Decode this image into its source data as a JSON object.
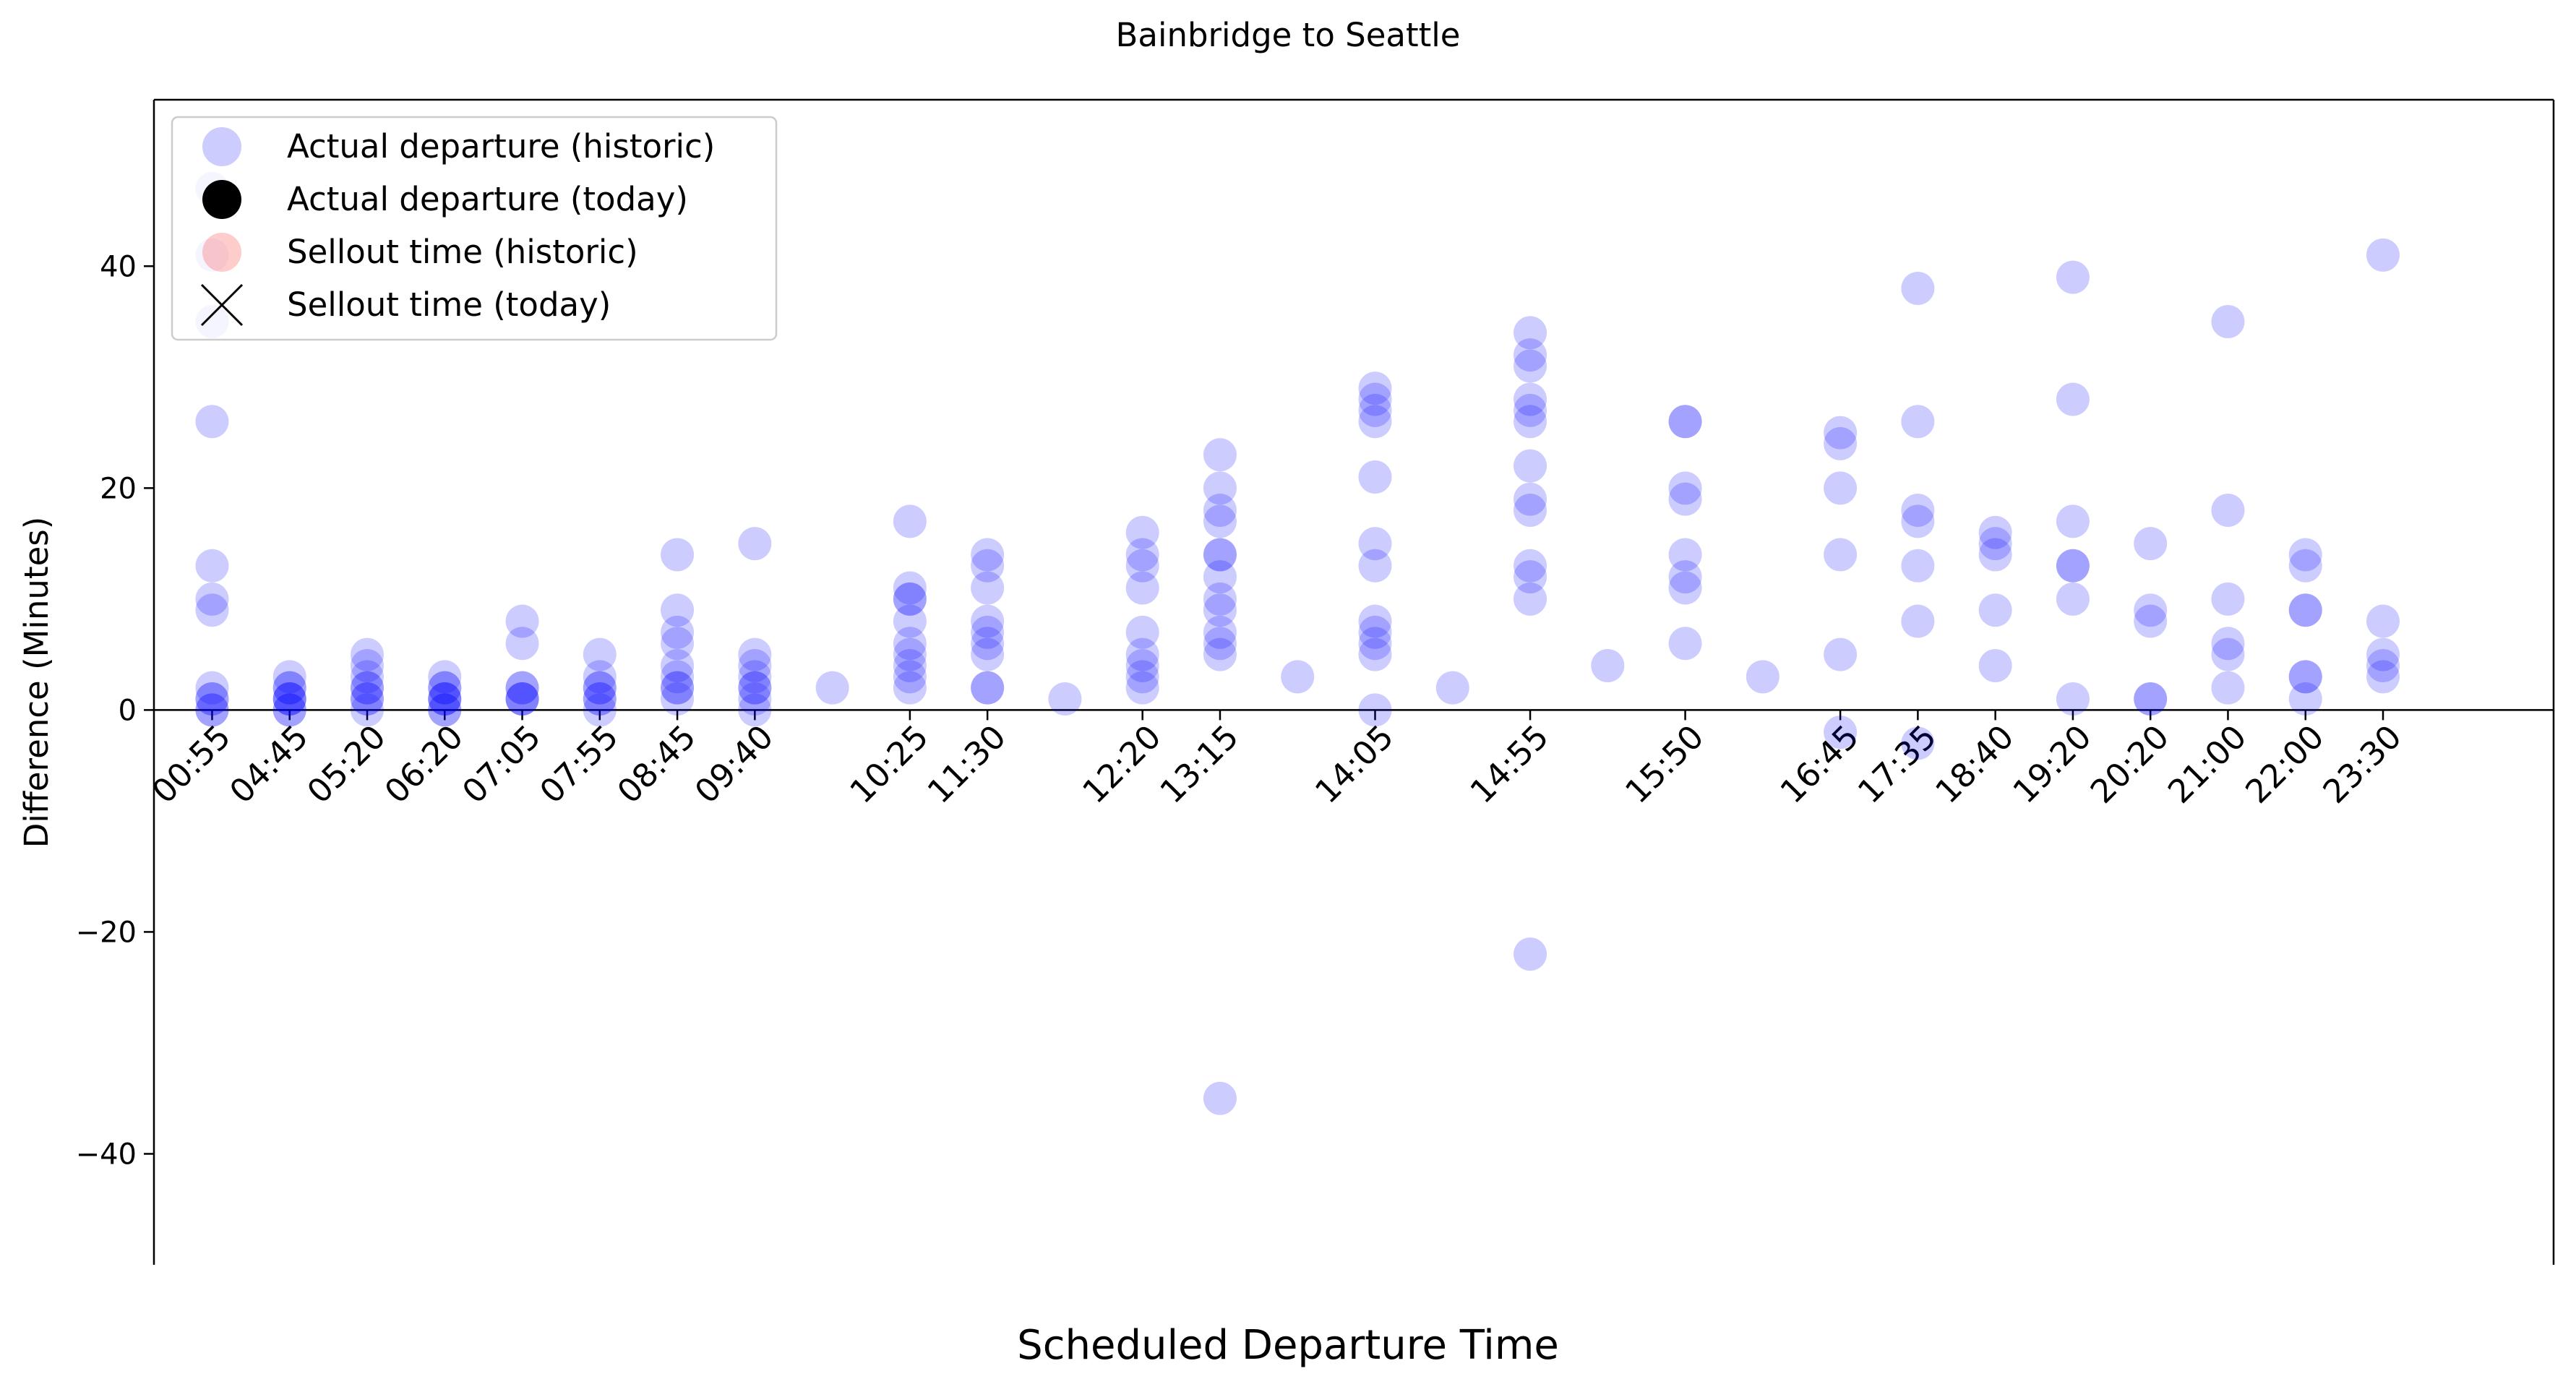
{
  "chart_data": {
    "type": "scatter",
    "title": "Bainbridge to Seattle",
    "xlabel": "Scheduled Departure Time",
    "ylabel": "Difference (Minutes)",
    "ylim": [
      -50,
      55
    ],
    "xlim": [
      -0.75,
      30.2
    ],
    "yticks": [
      -40,
      -20,
      0,
      20,
      40
    ],
    "ytick_labels": [
      "−40",
      "−20",
      "0",
      "20",
      "40"
    ],
    "x_categories": [
      "00:55",
      "04:45",
      "05:20",
      "06:20",
      "07:05",
      "07:55",
      "08:45",
      "09:40",
      "10:25",
      "11:30",
      "12:20",
      "13:15",
      "14:05",
      "14:55",
      "15:50",
      "16:45",
      "17:35",
      "18:40",
      "19:20",
      "20:20",
      "21:00",
      "22:00",
      "23:30"
    ],
    "x_tick_positions": [
      0,
      1,
      2,
      3,
      4,
      5,
      6,
      7,
      9,
      10,
      12,
      13,
      15,
      17,
      19,
      21,
      22,
      23,
      24,
      25,
      26,
      27,
      28
    ],
    "zero_line": true,
    "grid": false,
    "legend_placement": "upper-left",
    "legend": [
      {
        "label": "Actual departure (historic)",
        "marker": "circle",
        "color": "#0000ff",
        "opacity": 0.2
      },
      {
        "label": "Actual departure (today)",
        "marker": "circle",
        "color": "#000000",
        "opacity": 1
      },
      {
        "label": "Sellout time (historic)",
        "marker": "circle",
        "color": "#ff0000",
        "opacity": 0.2
      },
      {
        "label": "Sellout time (today)",
        "marker": "x",
        "color": "#000000",
        "opacity": 1
      }
    ],
    "series": [
      {
        "name": "Actual departure (historic)",
        "color": "#0000ff",
        "opacity": 0.2,
        "points": [
          [
            0,
            47
          ],
          [
            0,
            41
          ],
          [
            0,
            35
          ],
          [
            0,
            26
          ],
          [
            0,
            13
          ],
          [
            0,
            10
          ],
          [
            0,
            9
          ],
          [
            0,
            2
          ],
          [
            0,
            1
          ],
          [
            0,
            0
          ],
          [
            0,
            1
          ],
          [
            0,
            0
          ],
          [
            1,
            3
          ],
          [
            1,
            2
          ],
          [
            1,
            1
          ],
          [
            1,
            1
          ],
          [
            1,
            0
          ],
          [
            1,
            2
          ],
          [
            1,
            1
          ],
          [
            1,
            0
          ],
          [
            2,
            5
          ],
          [
            2,
            4
          ],
          [
            2,
            3
          ],
          [
            2,
            2
          ],
          [
            2,
            2
          ],
          [
            2,
            1
          ],
          [
            2,
            1
          ],
          [
            2,
            0
          ],
          [
            3,
            3
          ],
          [
            3,
            2
          ],
          [
            3,
            1
          ],
          [
            3,
            1
          ],
          [
            3,
            0
          ],
          [
            3,
            2
          ],
          [
            3,
            1
          ],
          [
            3,
            0
          ],
          [
            4,
            8
          ],
          [
            4,
            6
          ],
          [
            4,
            2
          ],
          [
            4,
            1
          ],
          [
            4,
            2
          ],
          [
            4,
            1
          ],
          [
            4,
            1
          ],
          [
            5,
            5
          ],
          [
            5,
            3
          ],
          [
            5,
            2
          ],
          [
            5,
            1
          ],
          [
            5,
            0
          ],
          [
            5,
            2
          ],
          [
            5,
            1
          ],
          [
            6,
            14
          ],
          [
            6,
            9
          ],
          [
            6,
            7
          ],
          [
            6,
            6
          ],
          [
            6,
            4
          ],
          [
            6,
            3
          ],
          [
            6,
            2
          ],
          [
            6,
            1
          ],
          [
            6,
            2
          ],
          [
            7,
            15
          ],
          [
            7,
            5
          ],
          [
            7,
            4
          ],
          [
            7,
            3
          ],
          [
            7,
            2
          ],
          [
            7,
            1
          ],
          [
            7,
            0
          ],
          [
            7,
            2
          ],
          [
            8,
            2
          ],
          [
            9,
            17
          ],
          [
            9,
            11
          ],
          [
            9,
            10
          ],
          [
            9,
            8
          ],
          [
            9,
            6
          ],
          [
            9,
            5
          ],
          [
            9,
            4
          ],
          [
            9,
            3
          ],
          [
            9,
            2
          ],
          [
            9,
            10
          ],
          [
            10,
            14
          ],
          [
            10,
            13
          ],
          [
            10,
            11
          ],
          [
            10,
            8
          ],
          [
            10,
            7
          ],
          [
            10,
            6
          ],
          [
            10,
            5
          ],
          [
            10,
            2
          ],
          [
            10,
            2
          ],
          [
            11,
            1
          ],
          [
            12,
            16
          ],
          [
            12,
            14
          ],
          [
            12,
            13
          ],
          [
            12,
            11
          ],
          [
            12,
            7
          ],
          [
            12,
            5
          ],
          [
            12,
            4
          ],
          [
            12,
            3
          ],
          [
            12,
            2
          ],
          [
            13,
            23
          ],
          [
            13,
            20
          ],
          [
            13,
            18
          ],
          [
            13,
            17
          ],
          [
            13,
            14
          ],
          [
            13,
            14
          ],
          [
            13,
            12
          ],
          [
            13,
            10
          ],
          [
            13,
            9
          ],
          [
            13,
            7
          ],
          [
            13,
            6
          ],
          [
            13,
            5
          ],
          [
            13,
            -35
          ],
          [
            14,
            3
          ],
          [
            15,
            29
          ],
          [
            15,
            28
          ],
          [
            15,
            27
          ],
          [
            15,
            26
          ],
          [
            15,
            21
          ],
          [
            15,
            15
          ],
          [
            15,
            13
          ],
          [
            15,
            8
          ],
          [
            15,
            7
          ],
          [
            15,
            6
          ],
          [
            15,
            5
          ],
          [
            15,
            0
          ],
          [
            16,
            2
          ],
          [
            17,
            34
          ],
          [
            17,
            32
          ],
          [
            17,
            31
          ],
          [
            17,
            28
          ],
          [
            17,
            27
          ],
          [
            17,
            26
          ],
          [
            17,
            22
          ],
          [
            17,
            19
          ],
          [
            17,
            18
          ],
          [
            17,
            13
          ],
          [
            17,
            12
          ],
          [
            17,
            10
          ],
          [
            17,
            -22
          ],
          [
            18,
            4
          ],
          [
            19,
            26
          ],
          [
            19,
            26
          ],
          [
            19,
            20
          ],
          [
            19,
            19
          ],
          [
            19,
            14
          ],
          [
            19,
            12
          ],
          [
            19,
            11
          ],
          [
            19,
            6
          ],
          [
            20,
            3
          ],
          [
            21,
            25
          ],
          [
            21,
            24
          ],
          [
            21,
            20
          ],
          [
            21,
            14
          ],
          [
            21,
            5
          ],
          [
            21,
            -2
          ],
          [
            22,
            38
          ],
          [
            22,
            26
          ],
          [
            22,
            18
          ],
          [
            22,
            17
          ],
          [
            22,
            13
          ],
          [
            22,
            8
          ],
          [
            22,
            -3
          ],
          [
            23,
            16
          ],
          [
            23,
            15
          ],
          [
            23,
            14
          ],
          [
            23,
            9
          ],
          [
            23,
            4
          ],
          [
            24,
            39
          ],
          [
            24,
            28
          ],
          [
            24,
            17
          ],
          [
            24,
            13
          ],
          [
            24,
            13
          ],
          [
            24,
            10
          ],
          [
            24,
            1
          ],
          [
            25,
            15
          ],
          [
            25,
            9
          ],
          [
            25,
            8
          ],
          [
            25,
            1
          ],
          [
            25,
            1
          ],
          [
            26,
            35
          ],
          [
            26,
            18
          ],
          [
            26,
            10
          ],
          [
            26,
            6
          ],
          [
            26,
            5
          ],
          [
            26,
            2
          ],
          [
            27,
            14
          ],
          [
            27,
            13
          ],
          [
            27,
            9
          ],
          [
            27,
            9
          ],
          [
            27,
            3
          ],
          [
            27,
            3
          ],
          [
            27,
            1
          ],
          [
            28,
            41
          ],
          [
            28,
            8
          ],
          [
            28,
            5
          ],
          [
            28,
            4
          ],
          [
            28,
            3
          ]
        ]
      }
    ]
  }
}
